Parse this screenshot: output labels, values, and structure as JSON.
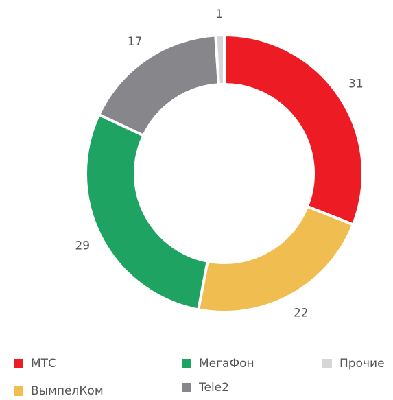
{
  "chart_data": {
    "type": "donut",
    "categories": [
      "МТС",
      "ВымпелКом",
      "МегаФон",
      "Tele2",
      "Прочие"
    ],
    "values": [
      31,
      22,
      29,
      17,
      1
    ],
    "colors": [
      "#ed1c24",
      "#f0be50",
      "#1fa363",
      "#87878b",
      "#d6d6d8"
    ],
    "legend": "bottom"
  }
}
